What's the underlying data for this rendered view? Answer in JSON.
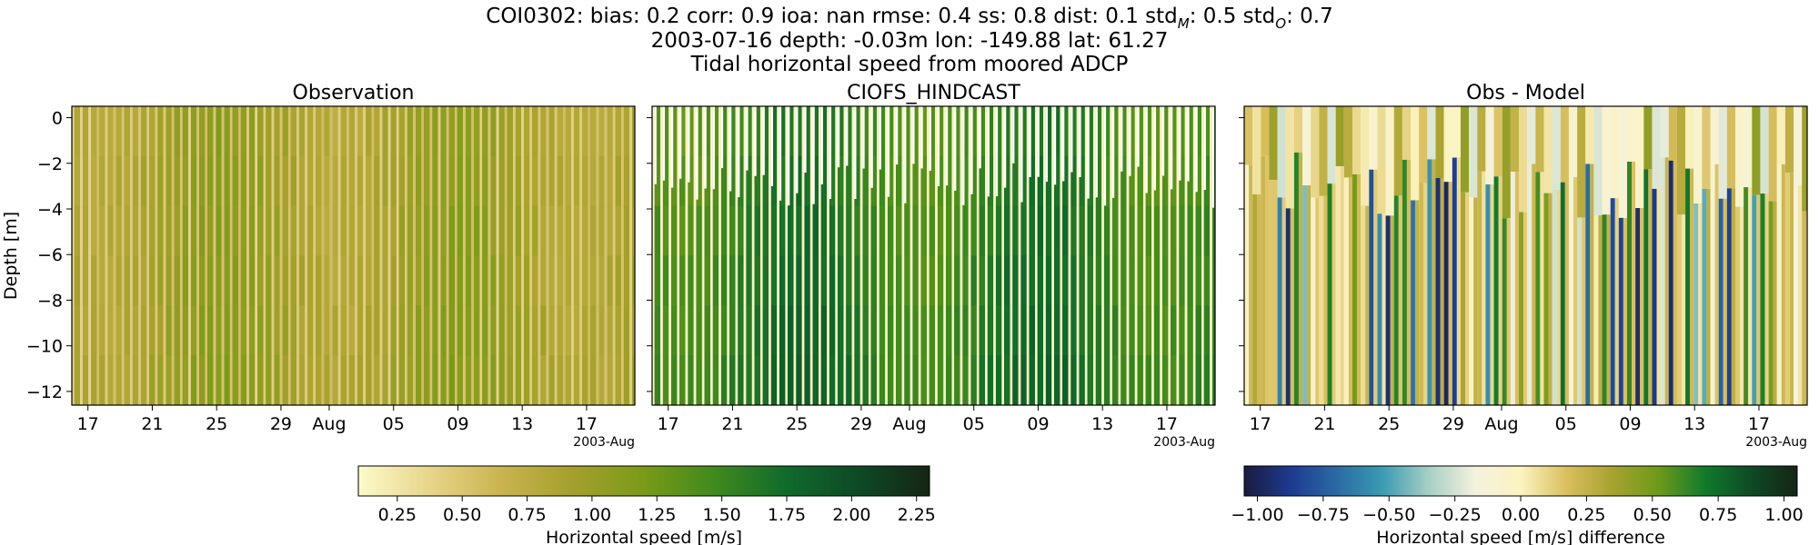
{
  "header": {
    "stats_prefix": "COI0302: bias: 0.2  corr: 0.9  ioa: nan  rmse: 0.4  ss: 0.8  dist: 0.1  std",
    "std_m_sub": "M",
    "std_m_val": ": 0.5  std",
    "std_o_sub": "O",
    "std_o_val": ": 0.7",
    "line2": "2003-07-16 depth: -0.03m lon: -149.88 lat: 61.27",
    "line3": "Tidal horizontal speed from moored ADCP"
  },
  "chart_data": [
    {
      "type": "heatmap",
      "title": "Observation",
      "ylabel": "Depth [m]",
      "ylim": [
        -12.6,
        0.5
      ],
      "yticks": [
        0,
        -2,
        -4,
        -6,
        -8,
        -10,
        -12
      ],
      "xlim": [
        "2003-07-16",
        "2003-08-20"
      ],
      "xtick_labels": [
        "17",
        "21",
        "25",
        "29",
        "Aug",
        "05",
        "09",
        "13",
        "17"
      ],
      "xtick_dates": [
        "2003-07-17",
        "2003-07-21",
        "2003-07-25",
        "2003-07-29",
        "2003-08-01",
        "2003-08-05",
        "2003-08-09",
        "2003-08-13",
        "2003-08-17"
      ],
      "x_offset_label": "2003-Aug",
      "colormap": "speed",
      "vmin": 0.1,
      "vmax": 2.3,
      "variable": "Horizontal speed [m/s]",
      "tidal_cycle_hours": 12.42
    },
    {
      "type": "heatmap",
      "title": "CIOFS_HINDCAST",
      "ylim": [
        -12.6,
        0.5
      ],
      "xlim": [
        "2003-07-16",
        "2003-08-20"
      ],
      "xtick_labels": [
        "17",
        "21",
        "25",
        "29",
        "Aug",
        "05",
        "09",
        "13",
        "17"
      ],
      "xtick_dates": [
        "2003-07-17",
        "2003-07-21",
        "2003-07-25",
        "2003-07-29",
        "2003-08-01",
        "2003-08-05",
        "2003-08-09",
        "2003-08-13",
        "2003-08-17"
      ],
      "x_offset_label": "2003-Aug",
      "colormap": "speed",
      "vmin": 0.1,
      "vmax": 2.3,
      "variable": "Horizontal speed [m/s]",
      "tidal_cycle_hours": 12.42
    },
    {
      "type": "heatmap",
      "title": "Obs - Model",
      "ylim": [
        -12.6,
        0.5
      ],
      "xlim": [
        "2003-07-16",
        "2003-08-20"
      ],
      "xtick_labels": [
        "17",
        "21",
        "25",
        "29",
        "Aug",
        "05",
        "09",
        "13",
        "17"
      ],
      "xtick_dates": [
        "2003-07-17",
        "2003-07-21",
        "2003-07-25",
        "2003-07-29",
        "2003-08-01",
        "2003-08-05",
        "2003-08-09",
        "2003-08-13",
        "2003-08-17"
      ],
      "x_offset_label": "2003-Aug",
      "colormap": "diff",
      "vmin": -1.05,
      "vmax": 1.05,
      "variable": "Horizontal speed [m/s] difference",
      "tidal_cycle_hours": 12.42
    }
  ],
  "colorbars": [
    {
      "label": "Horizontal speed [m/s]",
      "vmin": 0.1,
      "vmax": 2.3,
      "ticks": [
        0.25,
        0.5,
        0.75,
        1.0,
        1.25,
        1.5,
        1.75,
        2.0,
        2.25
      ],
      "tick_labels": [
        "0.25",
        "0.50",
        "0.75",
        "1.00",
        "1.25",
        "1.50",
        "1.75",
        "2.00",
        "2.25"
      ],
      "colors": [
        "#fdfacb",
        "#e7d58a",
        "#c9b44f",
        "#a4a02c",
        "#7a9a18",
        "#3f8a1e",
        "#106a2b",
        "#0e4a25",
        "#152515"
      ]
    },
    {
      "label": "Horizontal speed [m/s] difference",
      "vmin": -1.05,
      "vmax": 1.05,
      "ticks": [
        -1.0,
        -0.75,
        -0.5,
        -0.25,
        0.0,
        0.25,
        0.5,
        0.75,
        1.0
      ],
      "tick_labels": [
        "−1.00",
        "−0.75",
        "−0.50",
        "−0.25",
        "0.00",
        "0.25",
        "0.50",
        "0.75",
        "1.00"
      ],
      "colors": [
        "#1a1b3f",
        "#1d3a8f",
        "#2b6aa5",
        "#3a9bb3",
        "#a6cfc4",
        "#f4f1de",
        "#fbf3c0",
        "#d9bf5e",
        "#a7a22e",
        "#6b9a1a",
        "#117a2b",
        "#0e4a25",
        "#152515"
      ]
    }
  ]
}
